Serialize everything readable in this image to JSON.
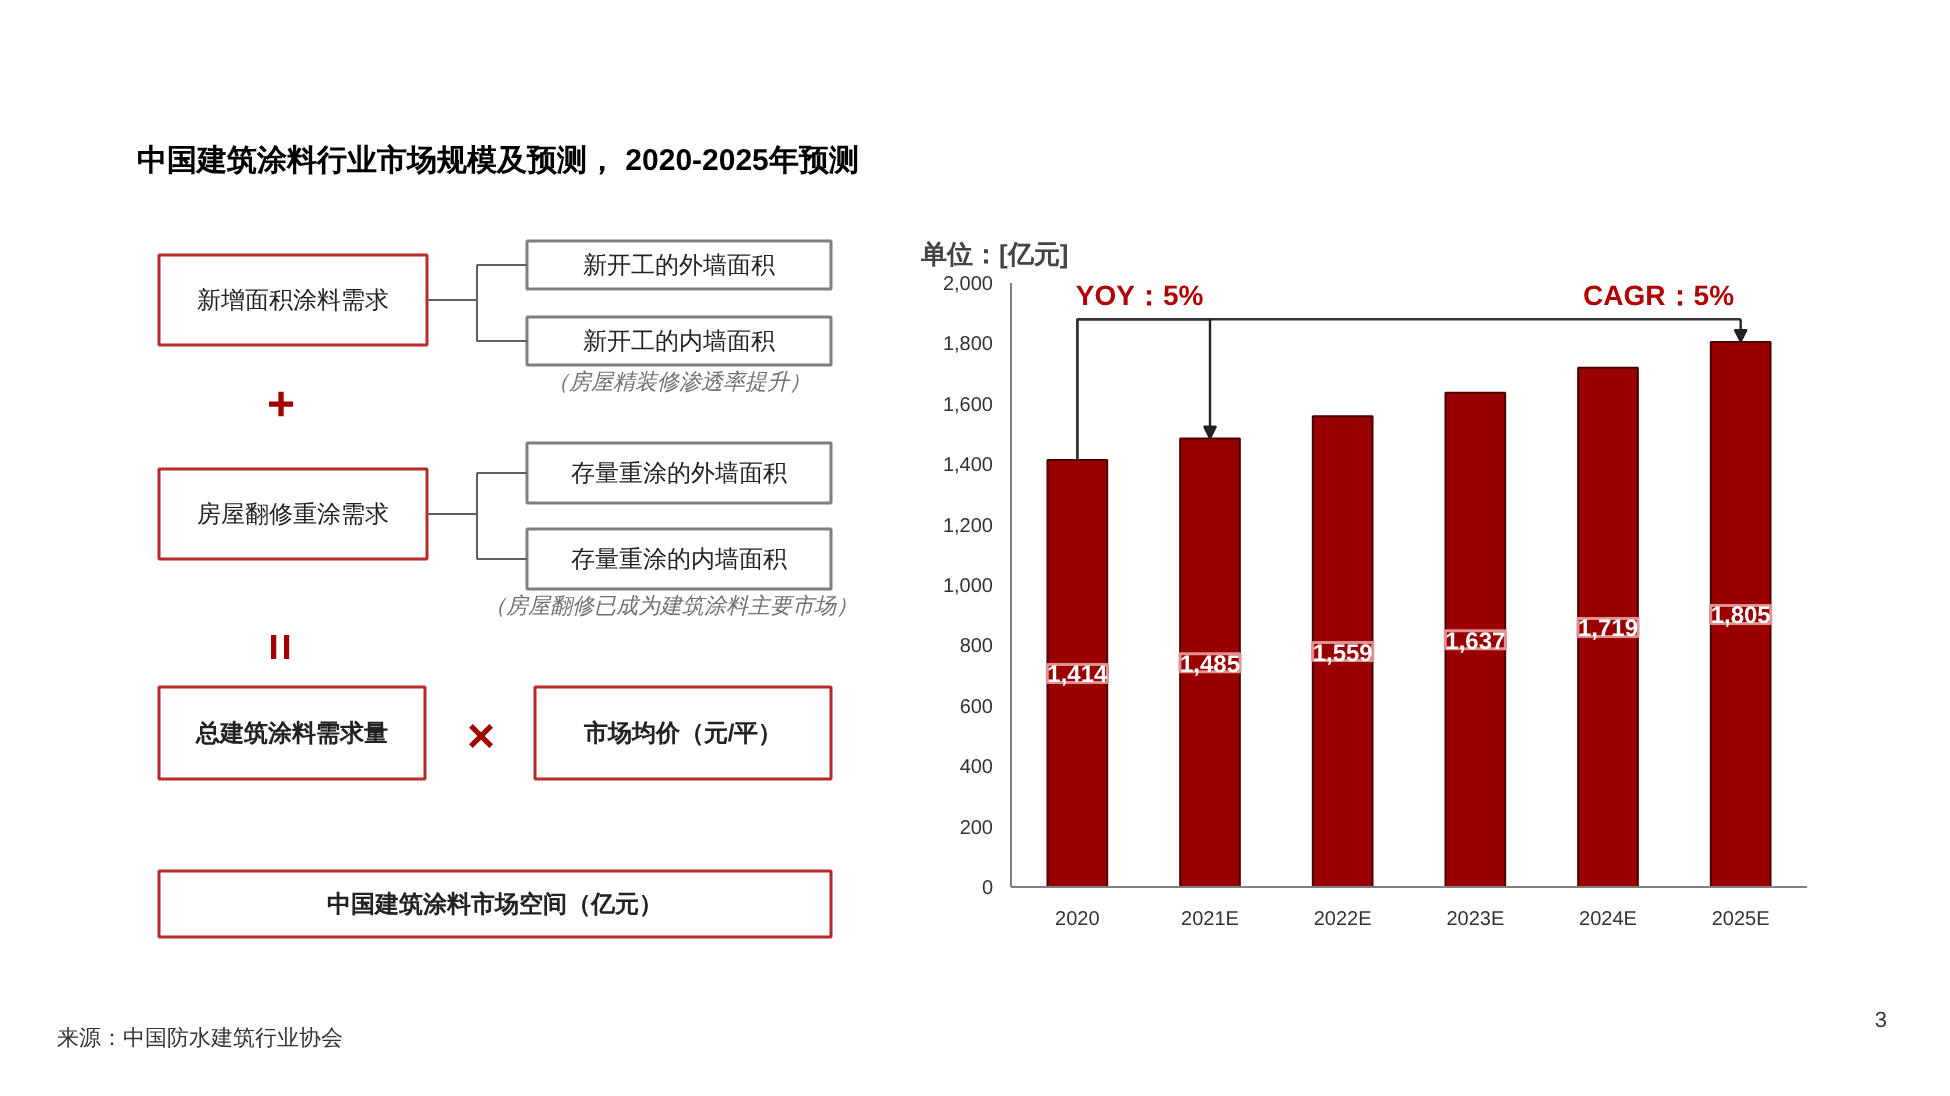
{
  "chart_data": [
    {
      "type": "other",
      "title": "中国建筑涂料行业市场规模及预测， 2020-2025年预测",
      "annotations": [
        "新增面积涂料需求",
        "新开工的外墙面积",
        "新开工的内墙面积",
        "（房屋精装修渗透率提升）",
        "+",
        "房屋翻修重涂需求",
        "存量重涂的外墙面积",
        "存量重涂的内墙面积",
        "（房屋翻修已成为建筑涂料主要市场）",
        "=",
        "总建筑涂料需求量",
        "×",
        "市场均价（元/平）",
        "中国建筑涂料市场空间（亿元）",
        "来源：中国防水建筑行业协会"
      ]
    },
    {
      "type": "bar",
      "ylabel": "单位：[亿元]",
      "categories": [
        "2020",
        "2021E",
        "2022E",
        "2023E",
        "2024E",
        "2025E"
      ],
      "values": [
        1414,
        1485,
        1559,
        1637,
        1719,
        1805
      ],
      "value_labels": [
        "1,414",
        "1,485",
        "1,559",
        "1,637",
        "1,719",
        "1,805"
      ],
      "color": "#990000",
      "ylim": [
        0,
        2000
      ],
      "yticks": [
        0,
        200,
        400,
        600,
        800,
        {
          "value": 1000,
          "label": "1,000"
        },
        {
          "value": 1200,
          "label": "1,200"
        },
        {
          "value": 1400,
          "label": "1,400"
        },
        {
          "value": 1600,
          "label": "1,600"
        },
        {
          "value": 1800,
          "label": "1,800"
        },
        {
          "value": 2000,
          "label": "2,000"
        }
      ],
      "grid": false,
      "annotations": [
        {
          "text": "YOY：5%",
          "x": "2021E",
          "y": 1485
        },
        {
          "text": "CAGR：5%",
          "x": "2025E",
          "y": 1805
        },
        "3"
      ]
    }
  ]
}
